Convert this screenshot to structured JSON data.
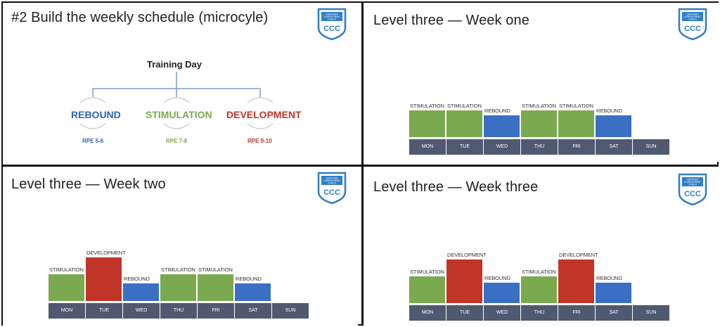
{
  "colors": {
    "stimulation": "#7aa94f",
    "development": "#c03527",
    "rebound": "#3a6fc4",
    "dayBar": "#4f5a70",
    "badge": "#2f7ec6"
  },
  "badge": {
    "line1": "CERTIFIED",
    "line2": "CONDITIONING",
    "line3": "COACH",
    "abbrev": "CCC"
  },
  "panel1": {
    "title": "#2 Build the weekly schedule (microcyle)",
    "root": "Training Day",
    "branches": [
      {
        "label": "REBOUND",
        "rpe": "RPE 5-6"
      },
      {
        "label": "STIMULATION",
        "rpe": "RPE 7-8"
      },
      {
        "label": "DEVELOPMENT",
        "rpe": "RPE 9-10"
      }
    ]
  },
  "panel2": {
    "title": "Level three — Week one",
    "days": [
      "MON",
      "TUE",
      "WED",
      "THU",
      "FRI",
      "SAT",
      "SUN"
    ],
    "bars": [
      {
        "label": "STIMULATION",
        "type": "stimulation",
        "level": 0.62
      },
      {
        "label": "STIMULATION",
        "type": "stimulation",
        "level": 0.62
      },
      {
        "label": "REBOUND",
        "type": "rebound",
        "level": 0.5
      },
      {
        "label": "STIMULATION",
        "type": "stimulation",
        "level": 0.62
      },
      {
        "label": "STIMULATION",
        "type": "stimulation",
        "level": 0.62
      },
      {
        "label": "REBOUND",
        "type": "rebound",
        "level": 0.5
      }
    ]
  },
  "panel3": {
    "title": "Level three — Week two",
    "days": [
      "MON",
      "TUE",
      "WED",
      "THU",
      "FRI",
      "SAT",
      "SUN"
    ],
    "bars": [
      {
        "label": "STIMULATION",
        "type": "stimulation",
        "level": 0.62
      },
      {
        "label": "DEVELOPMENT",
        "type": "development",
        "level": 1.0
      },
      {
        "label": "REBOUND",
        "type": "rebound",
        "level": 0.4
      },
      {
        "label": "STIMULATION",
        "type": "stimulation",
        "level": 0.62
      },
      {
        "label": "STIMULATION",
        "type": "stimulation",
        "level": 0.62
      },
      {
        "label": "REBOUND",
        "type": "rebound",
        "level": 0.4
      }
    ]
  },
  "panel4": {
    "title": "Level three — Week three",
    "days": [
      "MON",
      "TUE",
      "WED",
      "THU",
      "FRI",
      "SAT",
      "SUN"
    ],
    "bars": [
      {
        "label": "STIMULATION",
        "type": "stimulation",
        "level": 0.62
      },
      {
        "label": "DEVELOPMENT",
        "type": "development",
        "level": 1.0
      },
      {
        "label": "REBOUND",
        "type": "rebound",
        "level": 0.46
      },
      {
        "label": "STIMULATION",
        "type": "stimulation",
        "level": 0.62
      },
      {
        "label": "DEVELOPMENT",
        "type": "development",
        "level": 1.0
      },
      {
        "label": "REBOUND",
        "type": "rebound",
        "level": 0.46
      }
    ]
  }
}
